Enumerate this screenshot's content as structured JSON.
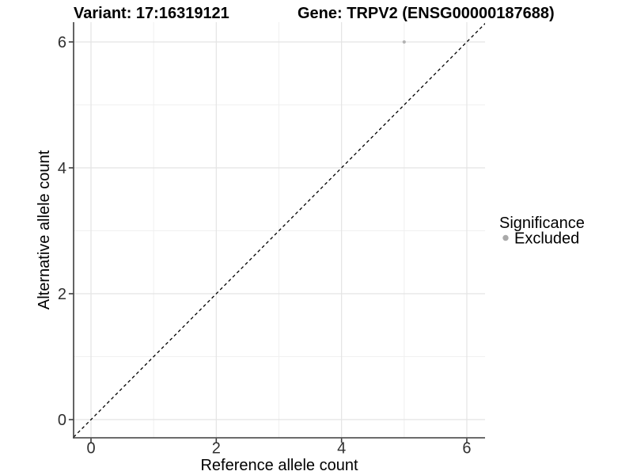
{
  "chart_data": {
    "type": "scatter",
    "titles": {
      "variant": "Variant: 17:16319121",
      "gene": "Gene: TRPV2 (ENSG00000187688)"
    },
    "xlabel": "Reference allele count",
    "ylabel": "Alternative allele count",
    "x_ticks": [
      0,
      2,
      4,
      6
    ],
    "y_ticks": [
      0,
      2,
      4,
      6
    ],
    "x_minor_ticks": [
      1,
      3,
      5
    ],
    "y_minor_ticks": [
      1,
      3,
      5
    ],
    "xlim": [
      -0.278,
      6.291
    ],
    "ylim": [
      -0.289,
      6.314
    ],
    "grid": true,
    "reference_line": {
      "type": "identity",
      "slope": 1,
      "intercept": 0,
      "style": "dashed",
      "color": "#000000"
    },
    "series": [
      {
        "name": "Excluded",
        "color": "#b3b3b3",
        "points": [
          {
            "x": 5,
            "y": 6
          }
        ]
      }
    ],
    "legend": {
      "title": "Significance",
      "position": "right",
      "entries": [
        {
          "label": "Excluded",
          "color": "#a9a9a9"
        }
      ]
    }
  }
}
